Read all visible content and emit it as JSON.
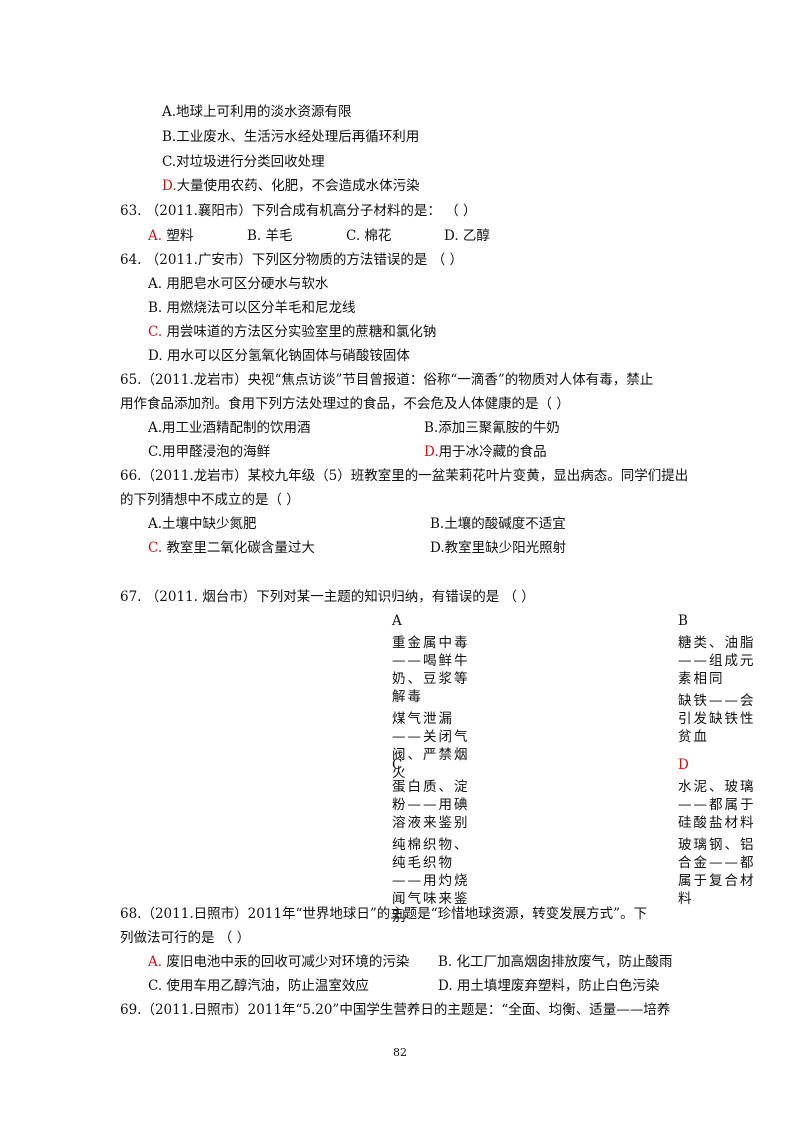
{
  "q62_options": {
    "A": "A.地球上可利用的淡水资源有限",
    "B": "B.工业废水、生活污水经处理后再循环利用",
    "C": "C.对垃圾进行分类回收处理",
    "D_letter": "D.",
    "D_text": "大量使用农药、化肥，不会造成水体污染"
  },
  "q63": {
    "stem": "63. （2011.襄阳市）下列合成有机高分子材料的是：   （        ）",
    "A_letter": "A.",
    "A_text": "塑料",
    "B": "B. 羊毛",
    "C": "C. 棉花",
    "D": "D. 乙醇"
  },
  "q64": {
    "stem": "64. （2011.广安市）下列区分物质的方法错误的是   （        ）",
    "A": "A. 用肥皂水可区分硬水与软水",
    "B": "B. 用燃烧法可以区分羊毛和尼龙线",
    "C_letter": "C.",
    "C_text": "用尝味道的方法区分实验室里的蔗糖和氯化钠",
    "D": "D. 用水可以区分氢氧化钠固体与硝酸铵固体"
  },
  "q65": {
    "stem1": "65.（2011.龙岩市）央视“焦点访谈”节目曾报道：俗称“一滴香”的物质对人体有毒，禁止",
    "stem2": "用作食品添加剂。食用下列方法处理过的食品，不会危及人体健康的是（        ）",
    "A": "A.用工业酒精配制的饮用酒",
    "B": "B.添加三聚氰胺的牛奶",
    "C": "C.用甲醛浸泡的海鲜",
    "D_letter": "D.",
    "D_text": "用于冰冷藏的食品"
  },
  "q66": {
    "stem1": "66.（2011.龙岩市）某校九年级（5）班教室里的一盆茉莉花叶片变黄，显出病态。同学们提出",
    "stem2": "的下列猜想中不成立的是（        ）",
    "A": "A.土壤中缺少氮肥",
    "B": "B.土壤的酸碱度不适宜",
    "C_letter": "C.",
    "C_text": "教室里二氧化碳含量过大",
    "D": "D.教室里缺少阳光照射"
  },
  "q67": {
    "stem": "67. （2011. 烟台市）下列对某一主题的知识归纳，有错误的是   （          ）",
    "A": {
      "head": "A",
      "item1": "重金属中毒——喝鲜牛奶、豆浆等解毒",
      "item2": "煤气泄漏——关闭气阀、严禁烟火"
    },
    "B": {
      "head": "B",
      "item1": "糖类、油脂——组成元素相同",
      "item2": "缺铁——会引发缺铁性贫血"
    },
    "C": {
      "head": "C",
      "item1": "蛋白质、淀粉——用碘溶液来鉴别",
      "item2": "纯棉织物、纯毛织物——用灼烧闻气味来鉴别"
    },
    "D": {
      "head": "D",
      "item1": "水泥、玻璃——都属于硅酸盐材料",
      "item2": "玻璃钢、铝合金——都属于复合材料"
    }
  },
  "q68": {
    "stem1": "68.（2011.日照市）2011年“世界地球日”的主题是“珍惜地球资源，转变发展方式”。下",
    "stem2": "列做法可行的是   （        ）",
    "A_letter": "A.",
    "A_text": "废旧电池中汞的回收可减少对环境的污染",
    "B": "B. 化工厂加高烟囱排放废气，防止酸雨",
    "C": "C. 使用车用乙醇汽油，防止温室效应",
    "D": "D. 用土填埋废弃塑料，防止白色污染"
  },
  "q69": {
    "stem1": "69.（2011.日照市）2011年“5.20”中国学生营养日的主题是：“全面、均衡、适量——培养"
  },
  "page_number": "82"
}
